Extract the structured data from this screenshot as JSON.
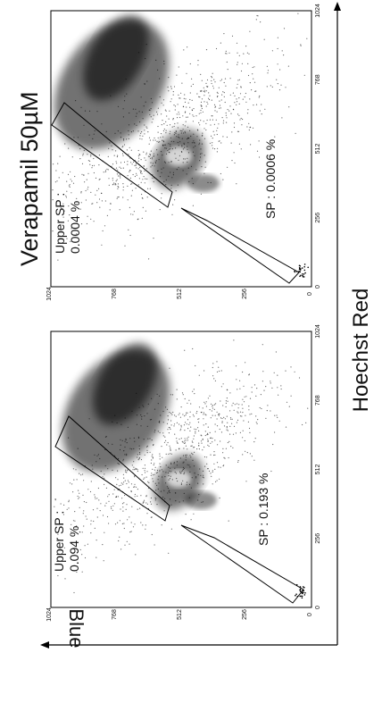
{
  "chart_data": {
    "type": "scatter",
    "xlabel": "Hoechst Red",
    "ylabel": "Hoechst Blue",
    "axis_ticks": [
      "0",
      "256",
      "512",
      "768",
      "1024"
    ],
    "xlim": [
      0,
      1024
    ],
    "ylim": [
      0,
      1024
    ],
    "panels": [
      {
        "title": "",
        "gates": [
          {
            "label": "Upper SP :",
            "value": "0.094 %"
          },
          {
            "label": "SP :",
            "value": "0.193 %"
          }
        ]
      },
      {
        "title": "Verapamil 50µM",
        "gates": [
          {
            "label": "Upper SP :",
            "value": "0.0004 %"
          },
          {
            "label": "SP :",
            "value": "0.0006 %"
          }
        ]
      }
    ]
  }
}
